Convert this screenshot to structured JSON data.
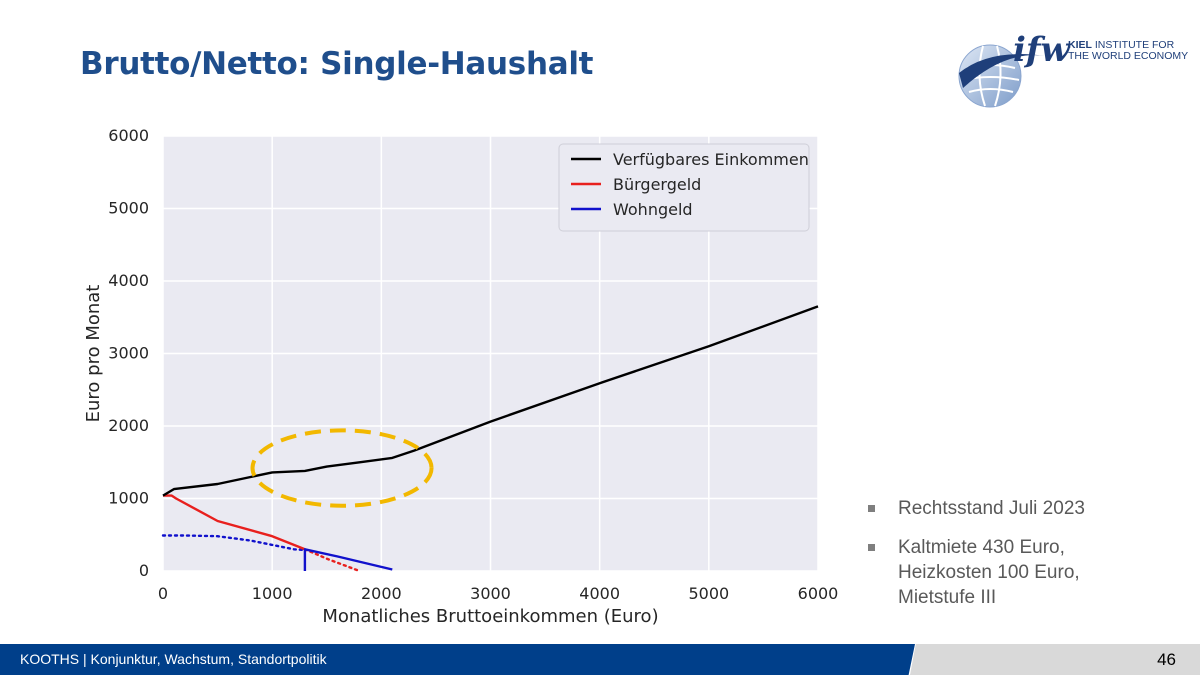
{
  "title": "Brutto/Netto: Single-Haushalt",
  "logo": {
    "mark": "ifw",
    "line1_bold": "KIEL",
    "line1": "INSTITUTE FOR",
    "line2": "THE WORLD ECONOMY"
  },
  "bullets": [
    {
      "lines": [
        "Rechtsstand Juli 2023"
      ]
    },
    {
      "lines": [
        "Kaltmiete 430 Euro,",
        "Heizkosten 100 Euro,",
        "Mietstufe III"
      ]
    }
  ],
  "footer": {
    "text": "KOOTHS | Konjunktur, Wachstum, Standortpolitik",
    "page": "46"
  },
  "colors": {
    "title": "#1f4e8c",
    "footer_blue": "#003f8a",
    "plot_bg": "#eaeaf2",
    "highlight": "#f2b800"
  },
  "chart_data": {
    "type": "line",
    "xlabel": "Monatliches Bruttoeinkommen (Euro)",
    "ylabel": "Euro pro Monat",
    "xlim": [
      0,
      6000
    ],
    "ylim": [
      0,
      6000
    ],
    "xticks": [
      0,
      1000,
      2000,
      3000,
      4000,
      5000,
      6000
    ],
    "yticks": [
      0,
      1000,
      2000,
      3000,
      4000,
      5000,
      6000
    ],
    "grid": true,
    "legend_position": "top-right",
    "series": [
      {
        "name": "Verfügbares Einkommen",
        "color": "#000000",
        "style": "solid",
        "x": [
          0,
          100,
          500,
          1000,
          1300,
          1500,
          1800,
          2100,
          2300,
          3000,
          4000,
          5000,
          6000
        ],
        "y": [
          1040,
          1130,
          1200,
          1360,
          1380,
          1440,
          1500,
          1560,
          1660,
          2060,
          2590,
          3100,
          3650
        ]
      },
      {
        "name": "Bürgergeld",
        "color": "#e8201e",
        "style": "solid",
        "x": [
          0,
          80,
          120,
          500,
          1000,
          1300
        ],
        "y": [
          1040,
          1040,
          1000,
          690,
          480,
          300
        ]
      },
      {
        "name": "",
        "color": "#e8201e",
        "style": "dotted",
        "x": [
          1300,
          1500,
          1800
        ],
        "y": [
          300,
          170,
          0
        ]
      },
      {
        "name": "Wohngeld",
        "color": "#1111cc",
        "style": "solid",
        "x": [
          1300,
          1300,
          1600,
          2100
        ],
        "y": [
          0,
          300,
          200,
          20
        ]
      },
      {
        "name": "",
        "color": "#1111cc",
        "style": "dotted",
        "x": [
          0,
          200,
          500,
          800,
          1000,
          1200,
          1300
        ],
        "y": [
          490,
          490,
          480,
          420,
          360,
          300,
          290
        ]
      }
    ],
    "annotations": [
      {
        "type": "dashed-ellipse",
        "color": "#f2b800",
        "cx": 1640,
        "cy": 1420,
        "rx": 820,
        "ry": 520
      }
    ]
  }
}
